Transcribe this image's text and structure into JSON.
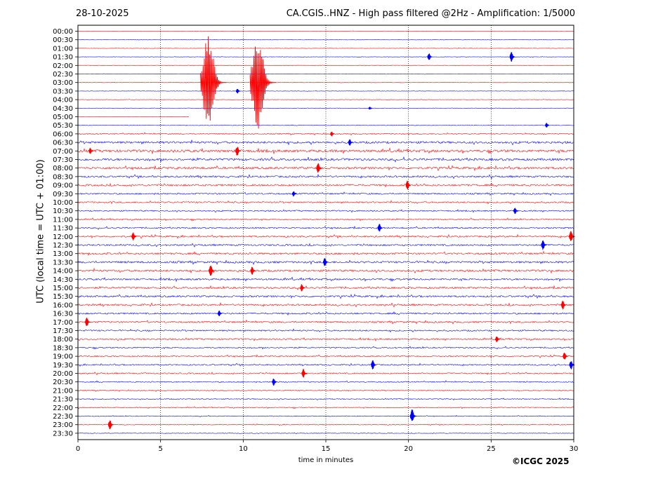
{
  "header": {
    "date": "28-10-2025",
    "title": "CA.CGIS..HNZ - High pass filtered @2Hz - Amplification: 1/5000"
  },
  "footer": {
    "copyright": "©ICGC 2025"
  },
  "chart_data": {
    "type": "line",
    "title": "CA.CGIS..HNZ - High pass filtered @2Hz - Amplification: 1/5000",
    "xlabel": "time in minutes",
    "ylabel": "UTC (local time = UTC + 01:00)",
    "xlim": [
      0,
      30
    ],
    "xticks": [
      0,
      5,
      10,
      15,
      20,
      25,
      30
    ],
    "vertical_gridlines_at": [
      5,
      10,
      15,
      20,
      25
    ],
    "trace_colors": [
      "#ff0000",
      "#0000ff"
    ],
    "trace_color_rule": "red for :00 rows, blue for :30 rows",
    "recording_end": {
      "row": "05:00",
      "minute": 6.7
    },
    "rows": [
      "00:00",
      "00:30",
      "01:00",
      "01:30",
      "02:00",
      "02:30",
      "03:00",
      "03:30",
      "04:00",
      "04:30",
      "05:00",
      "05:30",
      "06:00",
      "06:30",
      "07:00",
      "07:30",
      "08:00",
      "08:30",
      "09:00",
      "09:30",
      "10:00",
      "10:30",
      "11:00",
      "11:30",
      "12:00",
      "12:30",
      "13:00",
      "13:30",
      "14:00",
      "14:30",
      "15:00",
      "15:30",
      "16:00",
      "16:30",
      "17:00",
      "17:30",
      "18:00",
      "18:30",
      "19:00",
      "19:30",
      "20:00",
      "20:30",
      "21:00",
      "21:30",
      "22:00",
      "22:30",
      "23:00",
      "23:30"
    ],
    "noise_level": [
      0.02,
      0.02,
      0.02,
      0.02,
      0.02,
      0.02,
      0.02,
      0.02,
      0.02,
      0.02,
      0.02,
      0.03,
      0.06,
      0.12,
      0.14,
      0.13,
      0.12,
      0.1,
      0.1,
      0.08,
      0.08,
      0.07,
      0.07,
      0.08,
      0.09,
      0.09,
      0.1,
      0.11,
      0.11,
      0.1,
      0.1,
      0.1,
      0.1,
      0.09,
      0.09,
      0.08,
      0.08,
      0.07,
      0.07,
      0.07,
      0.07,
      0.06,
      0.05,
      0.05,
      0.05,
      0.04,
      0.04,
      0.03
    ],
    "events": [
      {
        "row": "01:30",
        "minute": 21.3,
        "amplitude": 0.45
      },
      {
        "row": "01:30",
        "minute": 26.3,
        "amplitude": 0.6
      },
      {
        "row": "03:00",
        "minute": 8.2,
        "amplitude": 5.5
      },
      {
        "row": "03:00",
        "minute": 11.2,
        "amplitude": 5.5
      },
      {
        "row": "03:30",
        "minute": 9.7,
        "amplitude": 0.3
      },
      {
        "row": "04:30",
        "minute": 17.7,
        "amplitude": 0.2
      },
      {
        "row": "05:30",
        "minute": 28.4,
        "amplitude": 0.3
      },
      {
        "row": "06:00",
        "minute": 15.4,
        "amplitude": 0.3
      },
      {
        "row": "06:30",
        "minute": 16.5,
        "amplitude": 0.4
      },
      {
        "row": "07:00",
        "minute": 9.7,
        "amplitude": 0.6
      },
      {
        "row": "07:00",
        "minute": 0.8,
        "amplitude": 0.4
      },
      {
        "row": "08:00",
        "minute": 14.6,
        "amplitude": 0.6
      },
      {
        "row": "09:00",
        "minute": 20.0,
        "amplitude": 0.55
      },
      {
        "row": "09:30",
        "minute": 13.1,
        "amplitude": 0.35
      },
      {
        "row": "10:30",
        "minute": 26.5,
        "amplitude": 0.4
      },
      {
        "row": "11:30",
        "minute": 18.3,
        "amplitude": 0.5
      },
      {
        "row": "12:00",
        "minute": 29.9,
        "amplitude": 0.7
      },
      {
        "row": "12:00",
        "minute": 3.4,
        "amplitude": 0.5
      },
      {
        "row": "12:30",
        "minute": 28.2,
        "amplitude": 0.6
      },
      {
        "row": "13:30",
        "minute": 15.0,
        "amplitude": 0.55
      },
      {
        "row": "14:00",
        "minute": 8.1,
        "amplitude": 0.7
      },
      {
        "row": "14:00",
        "minute": 10.6,
        "amplitude": 0.5
      },
      {
        "row": "15:00",
        "minute": 13.6,
        "amplitude": 0.45
      },
      {
        "row": "16:00",
        "minute": 29.4,
        "amplitude": 0.55
      },
      {
        "row": "16:30",
        "minute": 8.6,
        "amplitude": 0.35
      },
      {
        "row": "17:00",
        "minute": 0.6,
        "amplitude": 0.55
      },
      {
        "row": "18:00",
        "minute": 25.4,
        "amplitude": 0.4
      },
      {
        "row": "19:00",
        "minute": 29.5,
        "amplitude": 0.5
      },
      {
        "row": "19:30",
        "minute": 17.9,
        "amplitude": 0.55
      },
      {
        "row": "19:30",
        "minute": 29.9,
        "amplitude": 0.55
      },
      {
        "row": "20:00",
        "minute": 13.7,
        "amplitude": 0.55
      },
      {
        "row": "20:30",
        "minute": 11.9,
        "amplitude": 0.45
      },
      {
        "row": "22:30",
        "minute": 20.3,
        "amplitude": 0.8
      },
      {
        "row": "23:00",
        "minute": 2.0,
        "amplitude": 0.6
      }
    ]
  }
}
